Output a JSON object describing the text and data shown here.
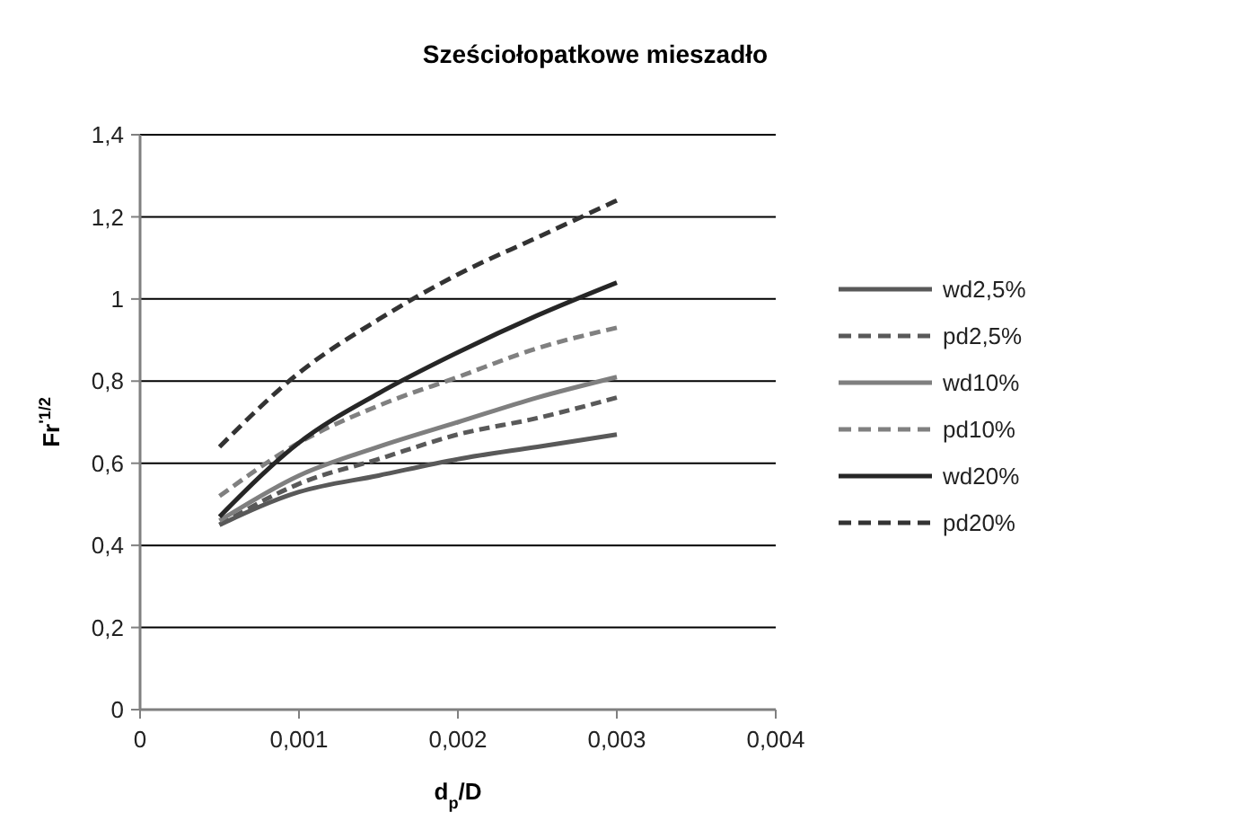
{
  "chart_data": {
    "type": "line",
    "title": "Sześciołopatkowe mieszadło",
    "xlabel": "d$_{p}$/D",
    "ylabel": "Fr$^{'1/2}$",
    "x": [
      0.0005,
      0.001,
      0.0015,
      0.002,
      0.0025,
      0.003
    ],
    "xlim": [
      0,
      0.004
    ],
    "xticks": [
      0,
      {
        "value": 0.001,
        "label": "0,001"
      },
      {
        "value": 0.002,
        "label": "0,002"
      },
      {
        "value": 0.003,
        "label": "0,003"
      },
      {
        "value": 0.004,
        "label": "0,004"
      }
    ],
    "ylim": [
      0,
      1.4
    ],
    "yticks": [
      0,
      {
        "value": 0.2,
        "label": "0,2"
      },
      {
        "value": 0.4,
        "label": "0,4"
      },
      {
        "value": 0.6,
        "label": "0,6"
      },
      {
        "value": 0.8,
        "label": "0,8"
      },
      1,
      {
        "value": 1.2,
        "label": "1,2"
      },
      {
        "value": 1.4,
        "label": "1,4"
      }
    ],
    "grid": "y",
    "legend": "right",
    "marker": "none",
    "series": [
      {
        "name": "wd2,5%",
        "color": "#595959",
        "line_style": "solid",
        "values": [
          0.45,
          0.53,
          0.57,
          0.61,
          0.64,
          0.67
        ]
      },
      {
        "name": "pd2,5%",
        "color": "#595959",
        "line_style": "dashed",
        "values": [
          0.45,
          0.55,
          0.61,
          0.67,
          0.71,
          0.76
        ]
      },
      {
        "name": "wd10%",
        "color": "#7f7f7f",
        "line_style": "solid",
        "values": [
          0.46,
          0.57,
          0.64,
          0.7,
          0.76,
          0.81
        ]
      },
      {
        "name": "pd10%",
        "color": "#808080",
        "line_style": "dashed",
        "values": [
          0.52,
          0.65,
          0.74,
          0.81,
          0.88,
          0.93
        ]
      },
      {
        "name": "wd20%",
        "color": "#262626",
        "line_style": "solid",
        "values": [
          0.47,
          0.65,
          0.77,
          0.87,
          0.96,
          1.04
        ]
      },
      {
        "name": "pd20%",
        "color": "#333333",
        "line_style": "dashed",
        "values": [
          0.64,
          0.82,
          0.95,
          1.06,
          1.15,
          1.24
        ]
      }
    ]
  }
}
